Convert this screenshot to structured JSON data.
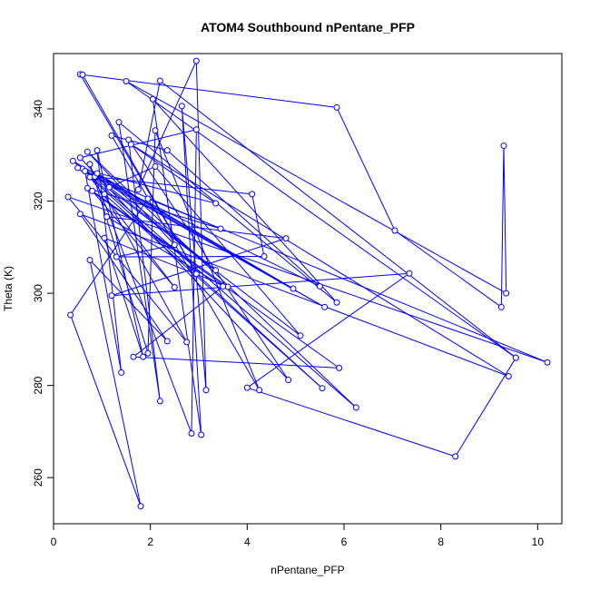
{
  "chart_data": {
    "type": "line",
    "title": "ATOM4 Southbound nPentane_PFP",
    "xlabel": "nPentane_PFP",
    "ylabel": "Theta (K)",
    "xlim": [
      0,
      10.5
    ],
    "ylim": [
      250,
      352
    ],
    "x_ticks": [
      0,
      2,
      4,
      6,
      8,
      10
    ],
    "y_ticks": [
      260,
      280,
      300,
      320,
      340
    ],
    "grid": false,
    "markers": "open-circle",
    "color": "#0000ff",
    "series": [
      {
        "points": [
          [
            0.55,
            347.5
          ],
          [
            2.95,
            304.2
          ],
          [
            0.6,
            347.4
          ],
          [
            5.85,
            340.3
          ],
          [
            7.05,
            313.6
          ],
          [
            9.25,
            297
          ],
          [
            9.3,
            332
          ],
          [
            9.35,
            300
          ],
          [
            1.5,
            346
          ],
          [
            9.55,
            286
          ],
          [
            2.2,
            346.1
          ],
          [
            1.75,
            322.5
          ],
          [
            2.95,
            350.4
          ],
          [
            3.15,
            279
          ],
          [
            2.65,
            340.6
          ],
          [
            3.05,
            269.3
          ],
          [
            2.05,
            342.1
          ],
          [
            5.85,
            298
          ],
          [
            1.35,
            337.1
          ],
          [
            2.2,
            276.6
          ],
          [
            1.55,
            333.3
          ],
          [
            4.85,
            281.2
          ],
          [
            0.55,
            329.4
          ],
          [
            2.95,
            335.5
          ],
          [
            2.85,
            269.6
          ],
          [
            0.75,
            328
          ],
          [
            1.95,
            287
          ],
          [
            2.1,
            335.3
          ],
          [
            4.25,
            279
          ],
          [
            1.2,
            334.2
          ],
          [
            2.35,
            331
          ],
          [
            5.5,
            301.5
          ],
          [
            0.85,
            325.3
          ],
          [
            4.1,
            321.5
          ],
          [
            4.35,
            308
          ],
          [
            1.3,
            307.9
          ],
          [
            2.5,
            310.5
          ],
          [
            0.7,
            330.7
          ],
          [
            6.25,
            275.2
          ],
          [
            0.4,
            328.7
          ],
          [
            4.95,
            301
          ],
          [
            0.9,
            326
          ],
          [
            3.35,
            305
          ],
          [
            1.15,
            323
          ],
          [
            2.1,
            327.5
          ],
          [
            5.1,
            290.8
          ],
          [
            0.6,
            327
          ],
          [
            5.6,
            297
          ],
          [
            0.5,
            327.2
          ],
          [
            3.35,
            319.5
          ],
          [
            1.6,
            332.3
          ],
          [
            9.4,
            282
          ],
          [
            0.55,
            317.2
          ],
          [
            2.35,
            289.6
          ],
          [
            0.75,
            307.2
          ],
          [
            1.8,
            253.8
          ],
          [
            0.35,
            295.3
          ],
          [
            1.95,
            320.5
          ],
          [
            10.2,
            285
          ],
          [
            0.3,
            320.9
          ],
          [
            2.75,
            289.4
          ],
          [
            1.05,
            321.5
          ],
          [
            5.55,
            279.4
          ],
          [
            0.75,
            325.2
          ],
          [
            2.5,
            301.3
          ],
          [
            0.8,
            322.2
          ],
          [
            3.6,
            301.4
          ],
          [
            1.05,
            312
          ],
          [
            1.85,
            286.2
          ],
          [
            0.9,
            331
          ],
          [
            1.4,
            282.8
          ],
          [
            0.65,
            326.5
          ],
          [
            3.45,
            314
          ],
          [
            0.7,
            322.8
          ],
          [
            5.9,
            283.8
          ],
          [
            1.65,
            286.2
          ],
          [
            3.5,
            301.5
          ],
          [
            1.1,
            316.6
          ],
          [
            4.8,
            311.9
          ],
          [
            1.2,
            299.5
          ],
          [
            7.35,
            304.3
          ],
          [
            4.0,
            279.5
          ],
          [
            8.3,
            264.6
          ],
          [
            9.55,
            286
          ]
        ]
      }
    ]
  }
}
